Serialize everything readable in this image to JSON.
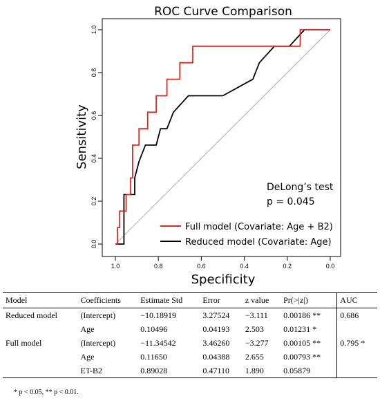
{
  "chart_data": {
    "type": "line",
    "title": "ROC Curve Comparison",
    "xlabel": "Specificity",
    "ylabel": "Sensitivity",
    "xlim": [
      1.0,
      0.0
    ],
    "ylim": [
      0.0,
      1.0
    ],
    "x_reversed": true,
    "xticks": [
      "1.0",
      "0.8",
      "0.6",
      "0.4",
      "0.2",
      "0.0"
    ],
    "yticks": [
      "0.0",
      "0.2",
      "0.4",
      "0.6",
      "0.8",
      "1.0"
    ],
    "xtick_values": [
      1.0,
      0.8,
      0.6,
      0.4,
      0.2,
      0.0
    ],
    "ytick_values": [
      0.0,
      0.2,
      0.4,
      0.6,
      0.8,
      1.0
    ],
    "reference_line": "diagonal",
    "annotation": [
      "DeLong’s test",
      "p = 0.045"
    ],
    "legend_position": "bottom-right",
    "series": [
      {
        "name": "Full model  (Covariate: Age + B2)",
        "color": "#e8261e",
        "points": [
          [
            1.0,
            0.0
          ],
          [
            0.99,
            0.0
          ],
          [
            0.99,
            0.077
          ],
          [
            0.98,
            0.077
          ],
          [
            0.98,
            0.154
          ],
          [
            0.95,
            0.154
          ],
          [
            0.95,
            0.231
          ],
          [
            0.93,
            0.231
          ],
          [
            0.93,
            0.308
          ],
          [
            0.92,
            0.308
          ],
          [
            0.92,
            0.462
          ],
          [
            0.89,
            0.462
          ],
          [
            0.89,
            0.538
          ],
          [
            0.85,
            0.538
          ],
          [
            0.85,
            0.615
          ],
          [
            0.81,
            0.615
          ],
          [
            0.81,
            0.692
          ],
          [
            0.76,
            0.692
          ],
          [
            0.76,
            0.769
          ],
          [
            0.7,
            0.769
          ],
          [
            0.7,
            0.846
          ],
          [
            0.64,
            0.846
          ],
          [
            0.64,
            0.923
          ],
          [
            0.14,
            0.923
          ],
          [
            0.14,
            1.0
          ],
          [
            0.0,
            1.0
          ]
        ]
      },
      {
        "name": "Reduced model (Covariate: Age)",
        "color": "#000000",
        "points": [
          [
            1.0,
            0.0
          ],
          [
            0.96,
            0.0
          ],
          [
            0.96,
            0.231
          ],
          [
            0.91,
            0.231
          ],
          [
            0.91,
            0.308
          ],
          [
            0.89,
            0.385
          ],
          [
            0.86,
            0.462
          ],
          [
            0.81,
            0.462
          ],
          [
            0.79,
            0.538
          ],
          [
            0.76,
            0.538
          ],
          [
            0.73,
            0.615
          ],
          [
            0.66,
            0.692
          ],
          [
            0.5,
            0.692
          ],
          [
            0.36,
            0.769
          ],
          [
            0.33,
            0.846
          ],
          [
            0.26,
            0.923
          ],
          [
            0.19,
            0.923
          ],
          [
            0.12,
            1.0
          ],
          [
            0.0,
            1.0
          ]
        ]
      }
    ]
  },
  "table": {
    "headers": [
      "Model",
      "Coefficients",
      "Estimate Std",
      "Error",
      "z value",
      "Pr(>|z|)",
      "AUC"
    ],
    "rows": [
      [
        "Reduced model",
        "(Intercept)",
        "−10.18919",
        "3.27524",
        "−3.111",
        "0.00186 **",
        "0.686"
      ],
      [
        "",
        "Age",
        "0.10496",
        "0.04193",
        "2.503",
        "0.01231 *",
        ""
      ],
      [
        "Full model",
        "(Intercept)",
        "−11.34542",
        "3.46260",
        "−3.277",
        "0.00105 **",
        "0.795 *"
      ],
      [
        "",
        "Age",
        "0.11650",
        "0.04388",
        "2.655",
        "0.00793 **",
        ""
      ],
      [
        "",
        "ET-B2",
        "0.89028",
        "0.47110",
        "1.890",
        "0.05879",
        ""
      ]
    ],
    "footnote": "* p < 0.05, ** p < 0.01."
  }
}
